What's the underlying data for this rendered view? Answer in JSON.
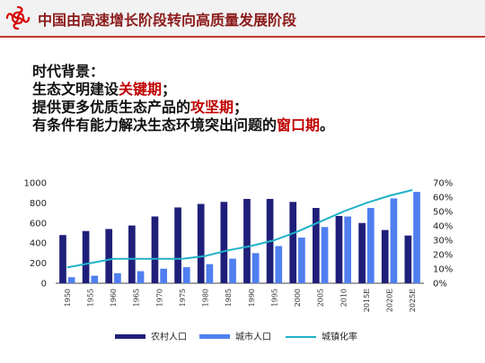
{
  "header": {
    "title": "中国由高速增长阶段转向高质量发展阶段"
  },
  "background": {
    "heading": "时代背景：",
    "line1_prefix": "生态文明建设",
    "line1_highlight": "关键期",
    "line1_suffix": "；",
    "line2_prefix": "提供更多优质生态产品的",
    "line2_highlight": "攻坚期",
    "line2_suffix": "；",
    "line3_prefix": "有条件有能力解决生态环境突出问题的",
    "line3_highlight": "窗口期",
    "line3_suffix": "。"
  },
  "colors": {
    "rural": "#1f1f7a",
    "urban": "#4f7ff0",
    "rate": "#20b2c8",
    "accent": "#c00000"
  },
  "chart_data": {
    "type": "bar",
    "categories": [
      "1950",
      "1955",
      "1960",
      "1965",
      "1970",
      "1975",
      "1980",
      "1985",
      "1990",
      "1995",
      "2000",
      "2005",
      "2010",
      "2015E",
      "2020E",
      "2025E"
    ],
    "series": [
      {
        "name": "农村人口",
        "type": "bar",
        "axis": "left",
        "values": [
          480,
          520,
          540,
          575,
          665,
          755,
          790,
          810,
          840,
          840,
          810,
          750,
          670,
          600,
          530,
          475
        ]
      },
      {
        "name": "城市人口",
        "type": "bar",
        "axis": "left",
        "values": [
          60,
          75,
          100,
          120,
          145,
          160,
          190,
          245,
          300,
          370,
          455,
          560,
          665,
          750,
          845,
          910
        ]
      },
      {
        "name": "城镇化率",
        "type": "line",
        "axis": "right",
        "values": [
          0.11,
          0.14,
          0.17,
          0.17,
          0.17,
          0.17,
          0.19,
          0.23,
          0.26,
          0.3,
          0.36,
          0.43,
          0.5,
          0.56,
          0.61,
          0.65
        ]
      }
    ],
    "y_left": {
      "min": 0,
      "max": 1000,
      "ticks": [
        "0",
        "200",
        "400",
        "600",
        "800",
        "1000"
      ]
    },
    "y_right": {
      "min": 0,
      "max": 0.7,
      "ticks": [
        "0%",
        "10%",
        "20%",
        "30%",
        "40%",
        "50%",
        "60%",
        "70%"
      ]
    },
    "legend_position": "bottom",
    "grid": false
  }
}
